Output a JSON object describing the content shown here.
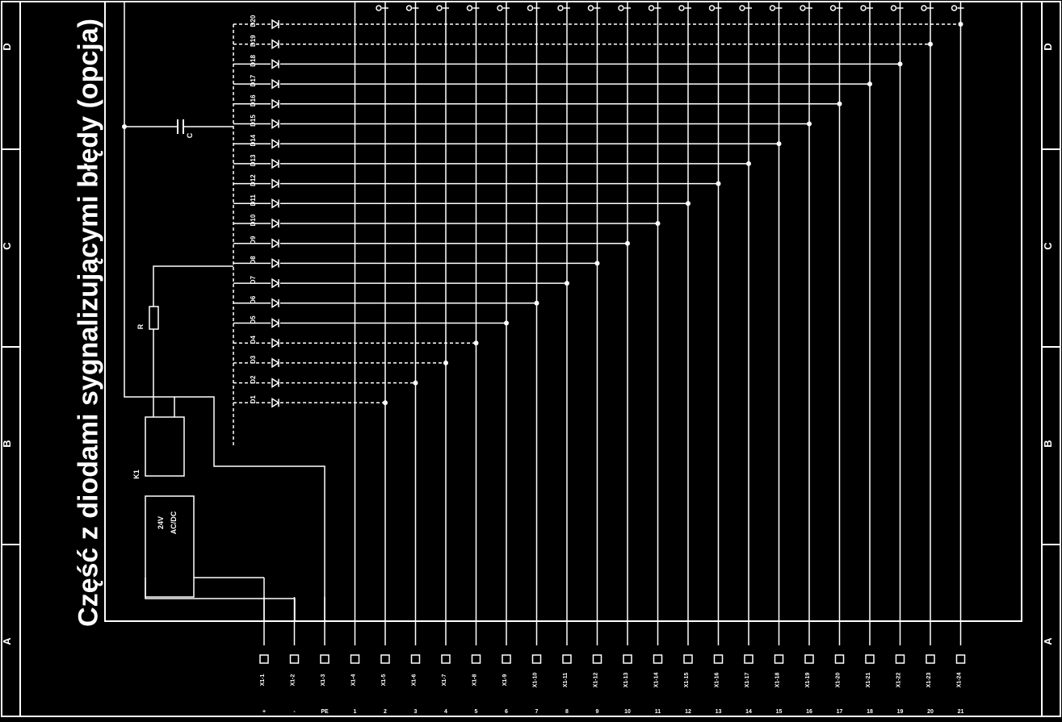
{
  "title": "Część z diodami sygnalizującymi błędy (opcja)",
  "frame": {
    "left_zones": [
      "A",
      "B",
      "C",
      "D"
    ],
    "right_zones": [
      "A",
      "B",
      "C",
      "D"
    ]
  },
  "power_unit": {
    "voltage_label": "24V",
    "type_label": "AC/DC"
  },
  "relay_label": "K1",
  "resistor_label": "R",
  "capacitor_label": "C",
  "diodes": {
    "labels": [
      "D20",
      "D19",
      "D18",
      "D17",
      "D16",
      "D15",
      "D14",
      "D13",
      "D12",
      "D11",
      "D10",
      "D9",
      "D8",
      "D7",
      "D6",
      "D5",
      "D4",
      "D3",
      "D2",
      "D1"
    ],
    "dashed": [
      true,
      true,
      false,
      false,
      false,
      false,
      false,
      false,
      false,
      false,
      false,
      false,
      false,
      false,
      false,
      false,
      true,
      true,
      true,
      true
    ]
  },
  "terminals": {
    "labels": [
      "X1-1",
      "X1-2",
      "X1-3",
      "X1-4",
      "X1-5",
      "X1-6",
      "X1-7",
      "X1-8",
      "X1-9",
      "X1-10",
      "X1-11",
      "X1-12",
      "X1-13",
      "X1-14",
      "X1-15",
      "X1-16",
      "X1-17",
      "X1-18",
      "X1-19",
      "X1-20",
      "X1-21",
      "X1-22",
      "X1-23",
      "X1-24"
    ],
    "bottom_marks": [
      "+",
      "-",
      "PE",
      "1",
      "2",
      "3",
      "4",
      "5",
      "6",
      "7",
      "8",
      "9",
      "10",
      "11",
      "12",
      "13",
      "14",
      "15",
      "16",
      "17",
      "18",
      "19",
      "20",
      "21"
    ]
  }
}
